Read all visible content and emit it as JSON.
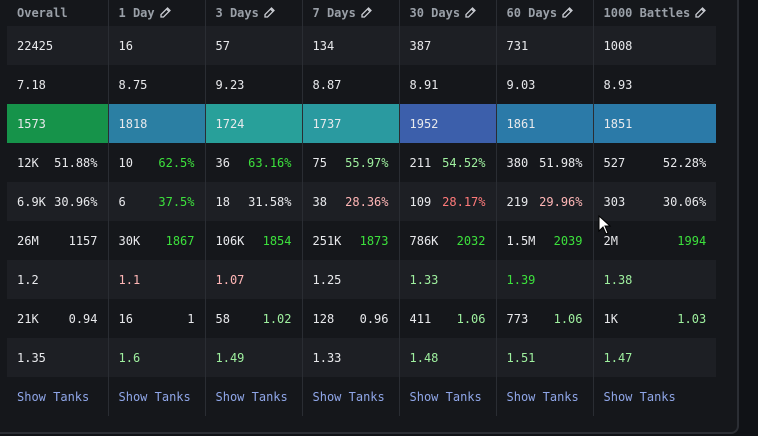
{
  "headers": [
    "Overall",
    "1 Day",
    "3 Days",
    "7 Days",
    "30 Days",
    "60 Days",
    "1000 Battles"
  ],
  "edit_icon": "pencil-icon",
  "rows": [
    {
      "name": "battles",
      "cells": [
        {
          "a": "22425"
        },
        {
          "a": "16"
        },
        {
          "a": "57"
        },
        {
          "a": "134"
        },
        {
          "a": "387"
        },
        {
          "a": "731"
        },
        {
          "a": "1008"
        }
      ]
    },
    {
      "name": "avg-tier",
      "cells": [
        {
          "a": "7.18"
        },
        {
          "a": "8.75"
        },
        {
          "a": "9.23"
        },
        {
          "a": "8.87"
        },
        {
          "a": "8.91"
        },
        {
          "a": "9.03"
        },
        {
          "a": "8.93"
        }
      ]
    },
    {
      "name": "rating",
      "cells": [
        {
          "a": "1573",
          "bg": "#16934a"
        },
        {
          "a": "1818",
          "bg": "#2b7fa3"
        },
        {
          "a": "1724",
          "bg": "#28a09a"
        },
        {
          "a": "1737",
          "bg": "#2a9aa0"
        },
        {
          "a": "1952",
          "bg": "#3c5fab"
        },
        {
          "a": "1861",
          "bg": "#2b7aa8"
        },
        {
          "a": "1851",
          "bg": "#2b7aa8"
        }
      ]
    },
    {
      "name": "wins",
      "cells": [
        {
          "a": "12K",
          "b": "51.88%"
        },
        {
          "a": "10",
          "b": "62.5%",
          "bc": "green"
        },
        {
          "a": "36",
          "b": "63.16%",
          "bc": "green"
        },
        {
          "a": "75",
          "b": "55.97%",
          "bc": "lgreen"
        },
        {
          "a": "211",
          "b": "54.52%",
          "bc": "lgreen"
        },
        {
          "a": "380",
          "b": "51.98%"
        },
        {
          "a": "527",
          "b": "52.28%"
        }
      ]
    },
    {
      "name": "survival",
      "cells": [
        {
          "a": "6.9K",
          "b": "30.96%"
        },
        {
          "a": "6",
          "b": "37.5%",
          "bc": "green"
        },
        {
          "a": "18",
          "b": "31.58%"
        },
        {
          "a": "38",
          "b": "28.36%",
          "bc": "pink"
        },
        {
          "a": "109",
          "b": "28.17%",
          "bc": "red"
        },
        {
          "a": "219",
          "b": "29.96%",
          "bc": "pink"
        },
        {
          "a": "303",
          "b": "30.06%"
        }
      ]
    },
    {
      "name": "damage",
      "cells": [
        {
          "a": "26M",
          "b": "1157"
        },
        {
          "a": "30K",
          "b": "1867",
          "bc": "green"
        },
        {
          "a": "106K",
          "b": "1854",
          "bc": "green"
        },
        {
          "a": "251K",
          "b": "1873",
          "bc": "green"
        },
        {
          "a": "786K",
          "b": "2032",
          "bc": "green"
        },
        {
          "a": "1.5M",
          "b": "2039",
          "bc": "green"
        },
        {
          "a": "2M",
          "b": "1994",
          "bc": "green"
        }
      ]
    },
    {
      "name": "damage-ratio",
      "cells": [
        {
          "a": "1.2"
        },
        {
          "a": "1.1",
          "ac": "pink"
        },
        {
          "a": "1.07",
          "ac": "pink"
        },
        {
          "a": "1.25"
        },
        {
          "a": "1.33",
          "ac": "lgreen"
        },
        {
          "a": "1.39",
          "ac": "green"
        },
        {
          "a": "1.38",
          "ac": "lgreen"
        }
      ]
    },
    {
      "name": "kills",
      "cells": [
        {
          "a": "21K",
          "b": "0.94"
        },
        {
          "a": "16",
          "b": "1"
        },
        {
          "a": "58",
          "b": "1.02",
          "bc": "lgreen"
        },
        {
          "a": "128",
          "b": "0.96"
        },
        {
          "a": "411",
          "b": "1.06",
          "bc": "lgreen"
        },
        {
          "a": "773",
          "b": "1.06",
          "bc": "lgreen"
        },
        {
          "a": "1K",
          "b": "1.03",
          "bc": "lgreen"
        }
      ]
    },
    {
      "name": "kd-ratio",
      "cells": [
        {
          "a": "1.35"
        },
        {
          "a": "1.6",
          "ac": "lgreen"
        },
        {
          "a": "1.49",
          "ac": "lgreen"
        },
        {
          "a": "1.33"
        },
        {
          "a": "1.48",
          "ac": "lgreen"
        },
        {
          "a": "1.51",
          "ac": "lgreen"
        },
        {
          "a": "1.47",
          "ac": "lgreen"
        }
      ]
    },
    {
      "name": "show-tanks",
      "link": true,
      "cells": [
        {
          "a": "Show Tanks"
        },
        {
          "a": "Show Tanks"
        },
        {
          "a": "Show Tanks"
        },
        {
          "a": "Show Tanks"
        },
        {
          "a": "Show Tanks"
        },
        {
          "a": "Show Tanks"
        },
        {
          "a": "Show Tanks"
        }
      ]
    }
  ]
}
